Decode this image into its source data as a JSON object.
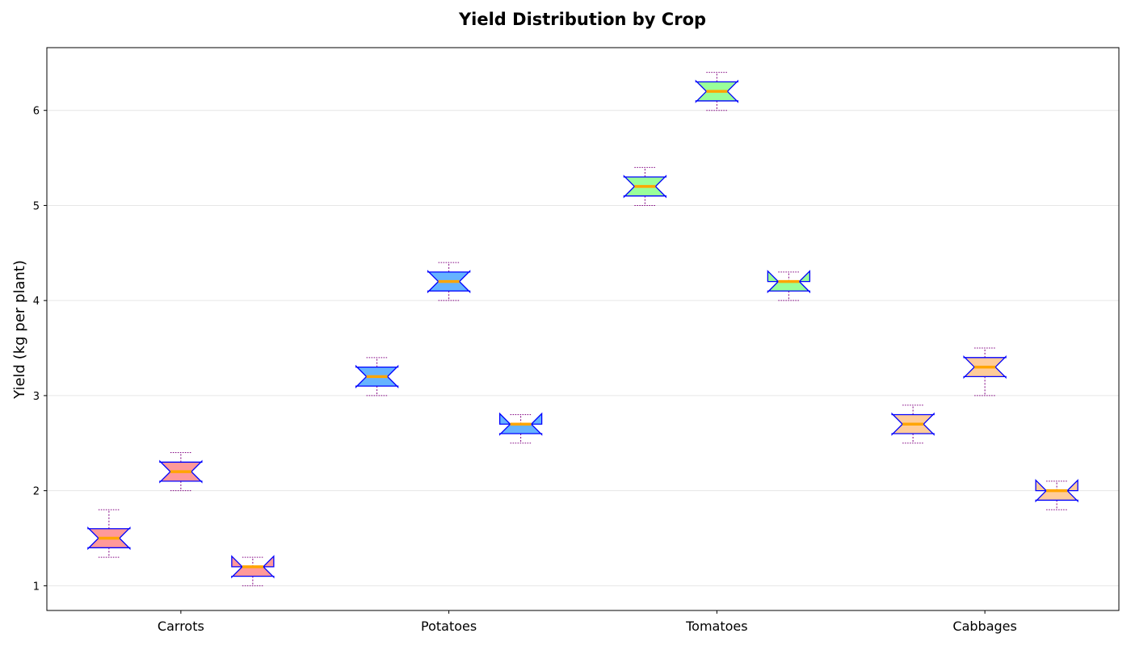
{
  "chart_data": {
    "type": "box",
    "title": "Yield Distribution by Crop",
    "xlabel": "",
    "ylabel": "Yield (kg per plant)",
    "ylim": [
      0.74,
      6.66
    ],
    "yticks": [
      1,
      2,
      3,
      4,
      5,
      6
    ],
    "grid": "y",
    "categories": [
      "Carrots",
      "Potatoes",
      "Tomatoes",
      "Cabbages"
    ],
    "colors": {
      "Carrots": "#ff9999",
      "Potatoes": "#66b3ff",
      "Tomatoes": "#99ff99",
      "Cabbages": "#ffcc99",
      "box_edge": "#0000ff",
      "median": "#ffa500",
      "whisker": "#800080",
      "grid": "#e6e6e6"
    },
    "groups": [
      {
        "category": "Carrots",
        "boxes": [
          {
            "whislo": 1.3,
            "q1": 1.4,
            "med": 1.5,
            "q3": 1.6,
            "whishi": 1.8
          },
          {
            "whislo": 2.0,
            "q1": 2.1,
            "med": 2.2,
            "q3": 2.3,
            "whishi": 2.4
          },
          {
            "whislo": 1.0,
            "q1": 1.1,
            "med": 1.2,
            "q3": 1.2,
            "whishi": 1.3
          }
        ]
      },
      {
        "category": "Potatoes",
        "boxes": [
          {
            "whislo": 3.0,
            "q1": 3.1,
            "med": 3.2,
            "q3": 3.3,
            "whishi": 3.4
          },
          {
            "whislo": 4.0,
            "q1": 4.1,
            "med": 4.2,
            "q3": 4.3,
            "whishi": 4.4
          },
          {
            "whislo": 2.5,
            "q1": 2.6,
            "med": 2.7,
            "q3": 2.7,
            "whishi": 2.8
          }
        ]
      },
      {
        "category": "Tomatoes",
        "boxes": [
          {
            "whislo": 5.0,
            "q1": 5.1,
            "med": 5.2,
            "q3": 5.3,
            "whishi": 5.4
          },
          {
            "whislo": 6.0,
            "q1": 6.1,
            "med": 6.2,
            "q3": 6.3,
            "whishi": 6.4
          },
          {
            "whislo": 4.0,
            "q1": 4.1,
            "med": 4.2,
            "q3": 4.2,
            "whishi": 4.3
          }
        ]
      },
      {
        "category": "Cabbages",
        "boxes": [
          {
            "whislo": 2.5,
            "q1": 2.6,
            "med": 2.7,
            "q3": 2.8,
            "whishi": 2.9
          },
          {
            "whislo": 3.0,
            "q1": 3.2,
            "med": 3.3,
            "q3": 3.4,
            "whishi": 3.5
          },
          {
            "whislo": 1.8,
            "q1": 1.9,
            "med": 2.0,
            "q3": 2.0,
            "whishi": 2.1
          }
        ]
      }
    ]
  }
}
